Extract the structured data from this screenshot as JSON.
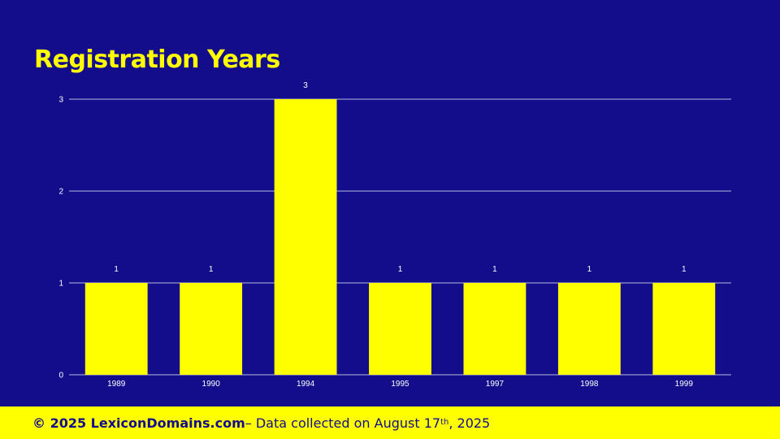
{
  "colors": {
    "background": "#130d8c",
    "accent": "#ffff00",
    "grid": "#b9b6e0",
    "axis_text": "#ffffff"
  },
  "chart_data": {
    "type": "bar",
    "title": "Registration Years",
    "categories": [
      "1989",
      "1990",
      "1994",
      "1995",
      "1997",
      "1998",
      "1999"
    ],
    "values": [
      1,
      1,
      3,
      1,
      1,
      1,
      1
    ],
    "data_labels": [
      "1",
      "1",
      "3",
      "1",
      "1",
      "1",
      "1"
    ],
    "ylim": [
      0,
      3
    ],
    "yticks": [
      "0",
      "1",
      "2",
      "3"
    ],
    "xlabel": "",
    "ylabel": "",
    "grid": true,
    "legend": "none"
  },
  "footer": {
    "brand": "© 2025 LexiconDomains.com",
    "text_before": " – Data collected on August 17",
    "sup": "th",
    "text_after": ", 2025"
  }
}
